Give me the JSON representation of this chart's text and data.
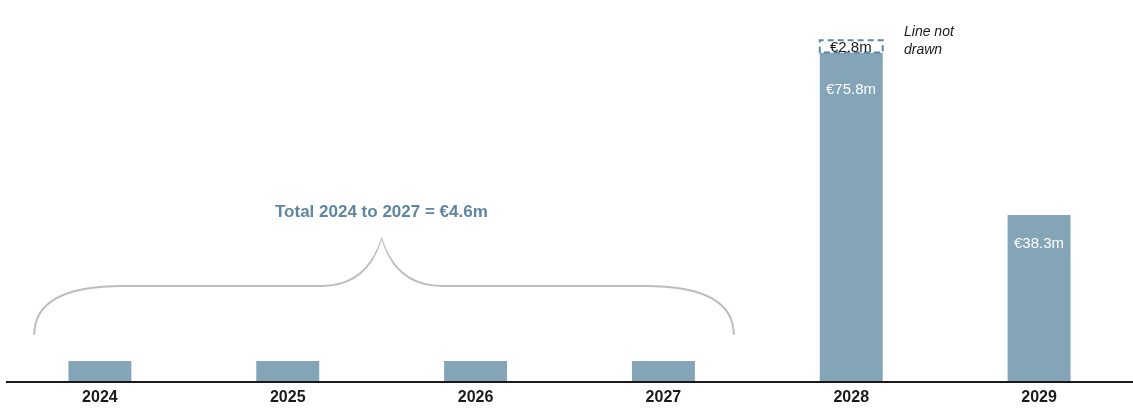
{
  "chart_data": {
    "type": "bar",
    "stacked": true,
    "categories": [
      "2024",
      "2025",
      "2026",
      "2027",
      "2028",
      "2029"
    ],
    "series": [
      {
        "color": "#84a4b8",
        "values": [
          4.6,
          4.6,
          4.6,
          4.6,
          75.8,
          38.3
        ],
        "value_labels": [
          null,
          null,
          null,
          null,
          "€75.8m",
          "€38.3m"
        ]
      },
      {
        "name": "Line not drawn",
        "color": "#ffffff",
        "line_style": "dashed",
        "values": [
          null,
          null,
          null,
          null,
          2.8,
          null
        ],
        "value_labels": [
          null,
          null,
          null,
          null,
          "€2.8m",
          null
        ]
      }
    ],
    "annotations": [
      "Total 2024 to 2027 = €4.6m"
    ],
    "grid": false,
    "legend": false
  }
}
